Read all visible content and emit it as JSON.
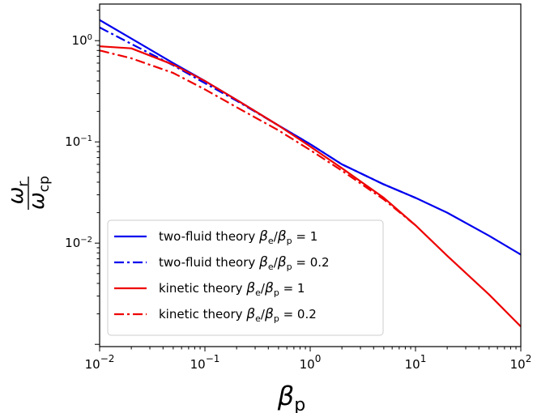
{
  "chart_data": {
    "type": "line",
    "title": "",
    "xlabel": "β",
    "xlabel_sub": "p",
    "ylabel_num": "ω",
    "ylabel_num_sub": "r",
    "ylabel_den": "ω",
    "ylabel_den_sub": "cp",
    "xscale": "log",
    "yscale": "log",
    "xlim": [
      0.01,
      100
    ],
    "ylim": [
      0.00095,
      2.3
    ],
    "grid": false,
    "legend_position": "lower-left",
    "x_ticks": [
      {
        "value": 0.01,
        "base": "10",
        "exp": "−2"
      },
      {
        "value": 0.1,
        "base": "10",
        "exp": "−1"
      },
      {
        "value": 1,
        "base": "10",
        "exp": "0"
      },
      {
        "value": 10,
        "base": "10",
        "exp": "1"
      },
      {
        "value": 100,
        "base": "10",
        "exp": "2"
      }
    ],
    "y_ticks": [
      {
        "value": 0.01,
        "base": "10",
        "exp": "−2"
      },
      {
        "value": 0.1,
        "base": "10",
        "exp": "−1"
      },
      {
        "value": 1,
        "base": "10",
        "exp": "0"
      }
    ],
    "series": [
      {
        "name": "two-fluid theory βe/βp = 1",
        "legend": {
          "prefix": "two-fluid theory ",
          "value": "1"
        },
        "color": "#0000ee",
        "dash": "solid",
        "x": [
          0.01,
          0.02,
          0.05,
          0.1,
          0.2,
          0.5,
          1,
          2,
          5,
          10,
          20,
          50,
          100
        ],
        "y": [
          1.6,
          1.05,
          0.6,
          0.4,
          0.26,
          0.145,
          0.095,
          0.06,
          0.038,
          0.028,
          0.02,
          0.0118,
          0.0077
        ]
      },
      {
        "name": "two-fluid theory βe/βp = 0.2",
        "legend": {
          "prefix": "two-fluid theory ",
          "value": "0.2"
        },
        "color": "#0000ee",
        "dash": "dashdot",
        "x": [
          0.01,
          0.02,
          0.05,
          0.1,
          0.2,
          0.5,
          1,
          2,
          5,
          10
        ],
        "y": [
          1.35,
          0.93,
          0.57,
          0.38,
          0.255,
          0.145,
          0.095,
          0.06,
          0.038,
          0.028
        ]
      },
      {
        "name": "kinetic theory βe/βp = 1",
        "legend": {
          "prefix": "kinetic theory ",
          "value": "1"
        },
        "color": "#ee0000",
        "dash": "solid",
        "x": [
          0.01,
          0.02,
          0.05,
          0.1,
          0.2,
          0.5,
          1,
          2,
          5,
          10,
          20,
          50,
          100
        ],
        "y": [
          0.88,
          0.84,
          0.58,
          0.4,
          0.26,
          0.145,
          0.09,
          0.055,
          0.028,
          0.015,
          0.0075,
          0.0031,
          0.0015
        ]
      },
      {
        "name": "kinetic theory βe/βp = 0.2",
        "legend": {
          "prefix": "kinetic theory ",
          "value": "0.2"
        },
        "color": "#ee0000",
        "dash": "dashdot",
        "x": [
          0.01,
          0.02,
          0.05,
          0.1,
          0.2,
          0.5,
          1,
          2,
          5,
          10
        ],
        "y": [
          0.8,
          0.67,
          0.48,
          0.33,
          0.22,
          0.13,
          0.083,
          0.052,
          0.027,
          0.015
        ]
      }
    ]
  }
}
